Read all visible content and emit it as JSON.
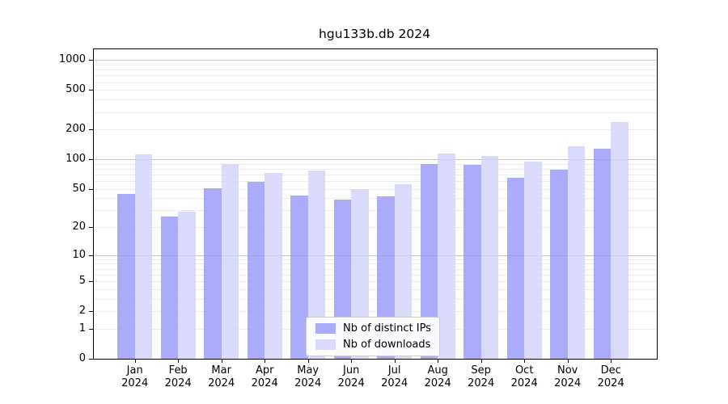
{
  "chart_data": {
    "type": "bar",
    "title": "hgu133b.db 2024",
    "categories": [
      "Jan",
      "Feb",
      "Mar",
      "Apr",
      "May",
      "Jun",
      "Jul",
      "Aug",
      "Sep",
      "Oct",
      "Nov",
      "Dec"
    ],
    "category_year": "2024",
    "series": [
      {
        "name": "Nb of distinct IPs",
        "color": "#9696fa",
        "alpha": 0.8,
        "values": [
          44,
          26,
          51,
          59,
          43,
          39,
          42,
          90,
          88,
          65,
          78,
          127
        ]
      },
      {
        "name": "Nb of downloads",
        "color": "#d1d1fa",
        "alpha": 0.8,
        "values": [
          112,
          29,
          89,
          73,
          77,
          50,
          56,
          115,
          109,
          94,
          136,
          240
        ]
      }
    ],
    "y_axis": {
      "scale": "log10(1+value)",
      "tick_values": [
        0,
        1,
        2,
        5,
        10,
        20,
        50,
        100,
        200,
        500,
        1000
      ],
      "tick_labels": [
        "0",
        "1",
        "2",
        "5",
        "10",
        "20",
        "50",
        "100",
        "200",
        "500",
        "1000"
      ],
      "major_gridline_values": [
        10,
        100,
        1000
      ],
      "ylim_top_approx": 1300
    },
    "x_axis": {
      "label_line2": "2024"
    },
    "legend": {
      "position": "bottom-center",
      "entries": [
        "Nb of distinct IPs",
        "Nb of downloads"
      ]
    },
    "colors": {
      "major_gridline": "#c6c6c6",
      "minor_gridline": "#ededed",
      "axis_border": "#000000",
      "background": "#ffffff"
    }
  }
}
